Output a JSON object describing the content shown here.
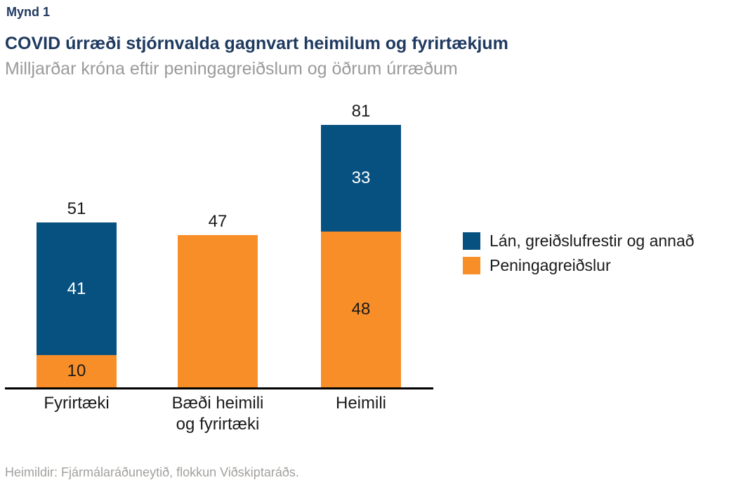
{
  "figure_label": "Mynd 1",
  "chart_data": {
    "type": "bar",
    "stacked": true,
    "title": "COVID úrræði stjórnvalda gagnvart heimilum og fyrirtækjum",
    "subtitle": "Milljarðar króna eftir peningagreiðslum og öðrum úrræðum",
    "unit": "Milljarðar króna",
    "categories": [
      "Fyrirtæki",
      "Bæði heimili og fyrirtæki",
      "Heimili"
    ],
    "category_label_lines": [
      [
        "Fyrirtæki"
      ],
      [
        "Bæði heimili",
        "og fyrirtæki"
      ],
      [
        "Heimili"
      ]
    ],
    "series": [
      {
        "name": "Lán, greiðslufrestir og annað",
        "color": "#075181",
        "label_color": "#ffffff",
        "values": [
          41,
          0,
          33
        ]
      },
      {
        "name": "Peningagreiðslur",
        "color": "#f88e28",
        "label_color": "#1a1a1a",
        "values": [
          10,
          47,
          48
        ]
      }
    ],
    "totals": [
      51,
      47,
      81
    ],
    "ylim": [
      0,
      85
    ],
    "grid": false,
    "legend_position": "right",
    "axis_color": "#000000"
  },
  "footer": {
    "source": "Heimildir: Fjármálaráðuneytið, flokkun Viðskiptaráðs."
  },
  "palette": {
    "title_navy": "#1f3a60",
    "subtitle_gray": "#9a9a9a",
    "source_gray": "#a3a19e",
    "bar_blue": "#075181",
    "bar_orange": "#f88e28"
  }
}
